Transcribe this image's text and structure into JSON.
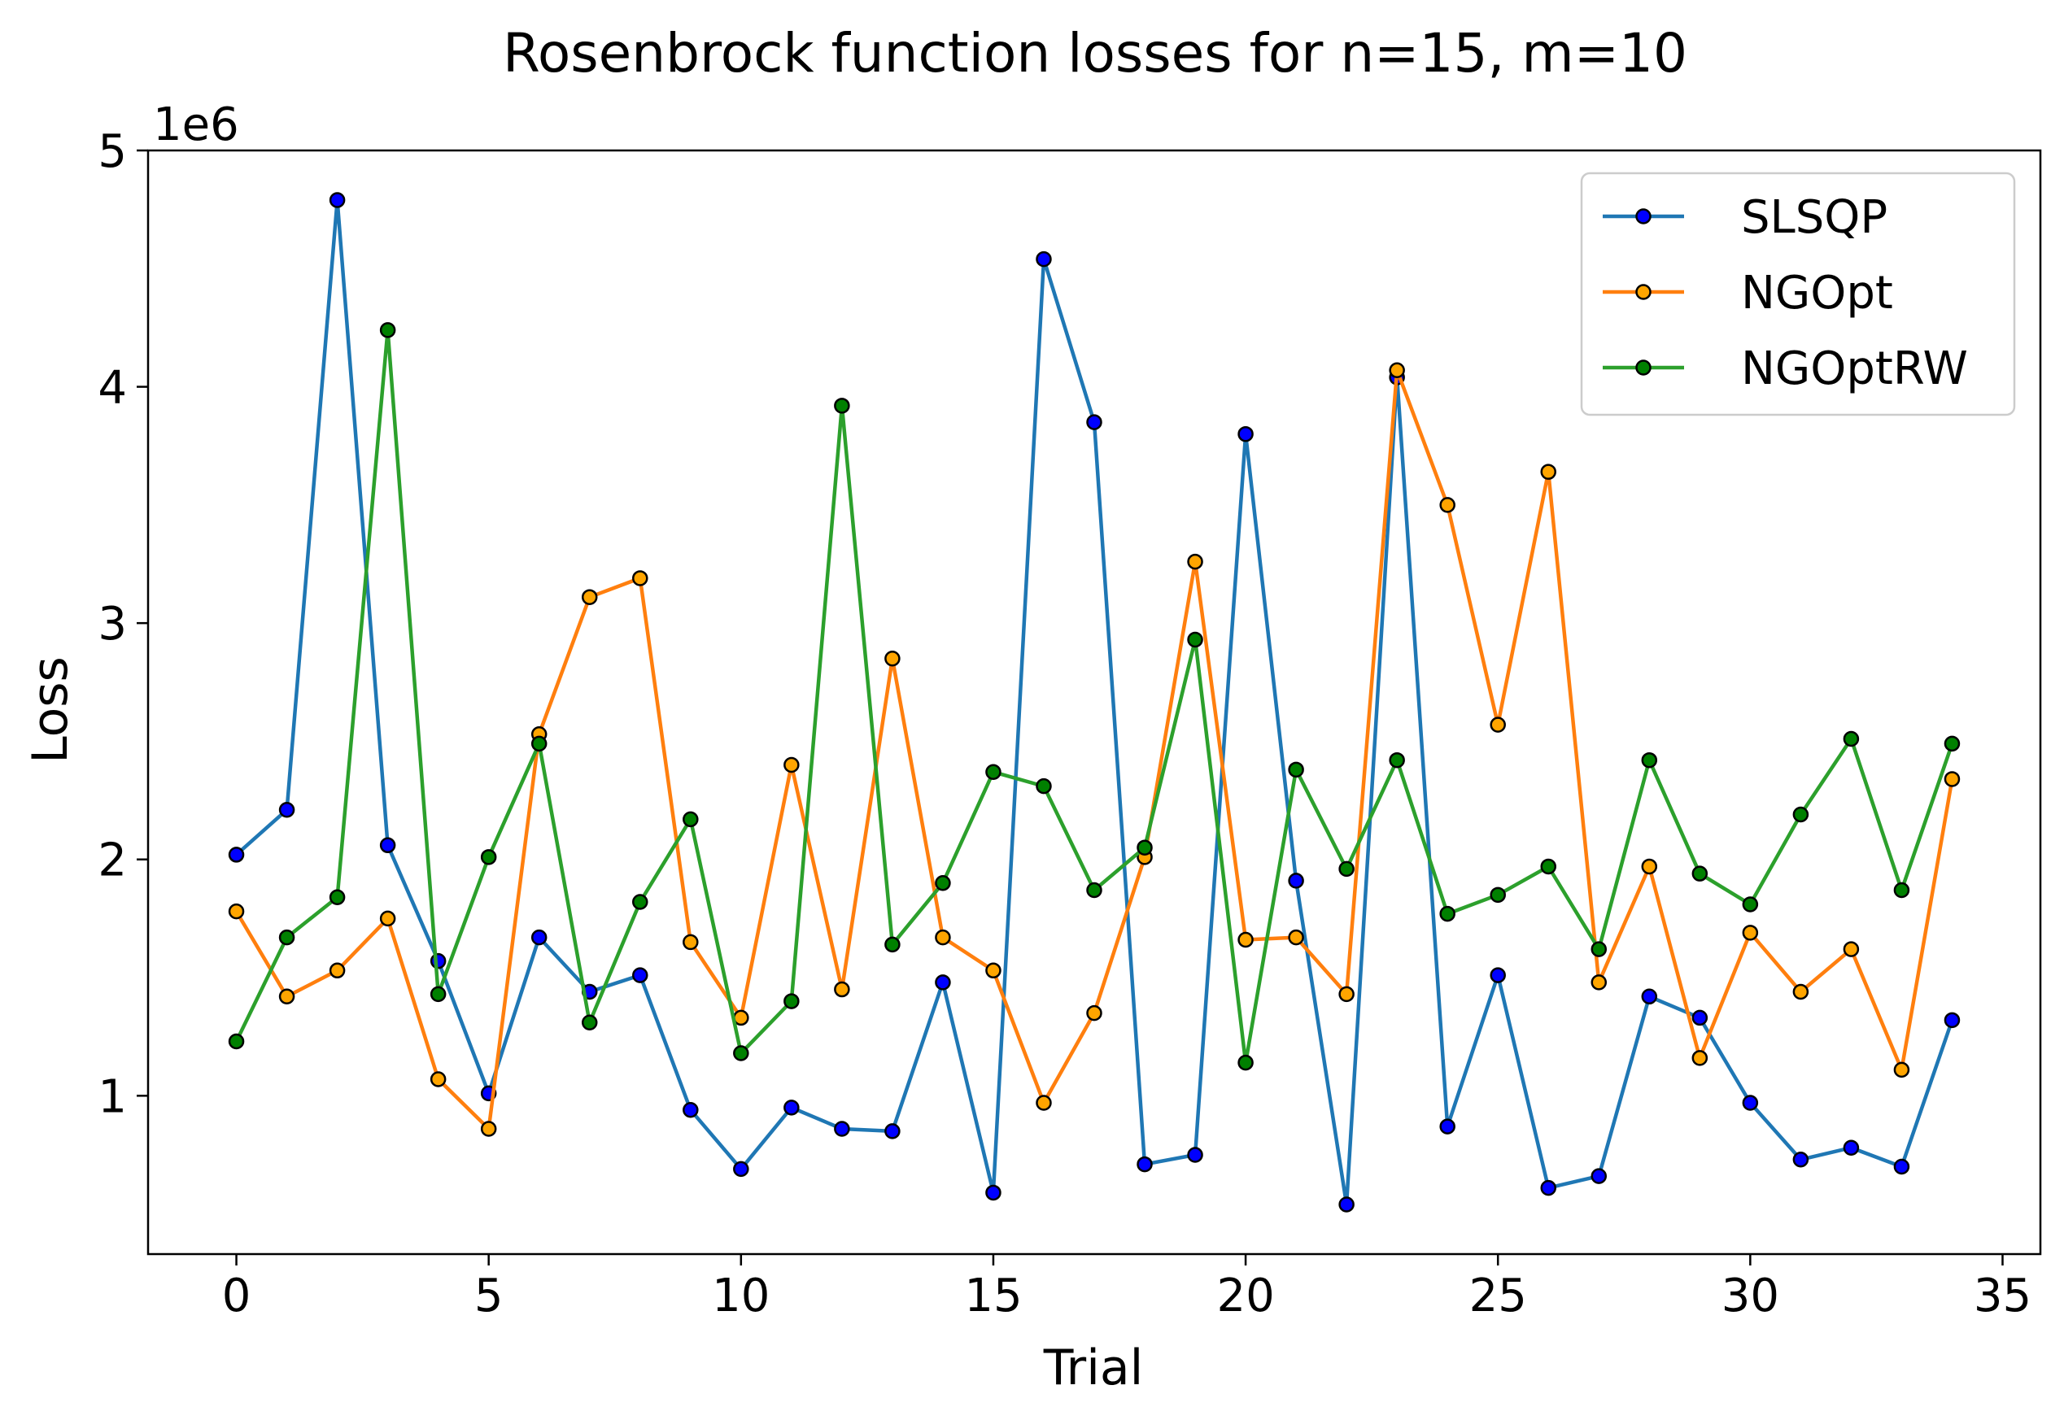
{
  "chart_data": {
    "type": "line",
    "title": "Rosenbrock function losses for n=15, m=10",
    "xlabel": "Trial",
    "ylabel": "Loss",
    "y_scale_label": "1e6",
    "y_multiplier": 1000000,
    "xlim": [
      -1.75,
      35.75
    ],
    "ylim": [
      0.33,
      5.0
    ],
    "xticks": [
      0,
      5,
      10,
      15,
      20,
      25,
      30,
      35
    ],
    "yticks": [
      1,
      2,
      3,
      4,
      5
    ],
    "grid": false,
    "legend_position": "top-right",
    "x": [
      0,
      1,
      2,
      3,
      4,
      5,
      6,
      7,
      8,
      9,
      10,
      11,
      12,
      13,
      14,
      15,
      16,
      17,
      18,
      19,
      20,
      21,
      22,
      23,
      24,
      25,
      26,
      27,
      28,
      29,
      30,
      31,
      32,
      33,
      34
    ],
    "series": [
      {
        "name": "SLSQP",
        "color": "#1f77b4",
        "marker_color": "#0000ff",
        "values": [
          2.02,
          2.21,
          4.79,
          2.06,
          1.57,
          1.01,
          1.67,
          1.44,
          1.51,
          0.94,
          0.69,
          0.95,
          0.86,
          0.85,
          1.48,
          0.59,
          4.54,
          3.85,
          0.71,
          0.75,
          3.8,
          1.91,
          0.54,
          4.04,
          0.87,
          1.51,
          0.61,
          0.66,
          1.42,
          1.33,
          0.97,
          0.73,
          0.78,
          0.7,
          1.32
        ]
      },
      {
        "name": "NGOpt",
        "color": "#ff7f0e",
        "marker_color": "#ffa500",
        "values": [
          1.78,
          1.42,
          1.53,
          1.75,
          1.07,
          0.86,
          2.53,
          3.11,
          3.19,
          1.65,
          1.33,
          2.4,
          1.45,
          2.85,
          1.67,
          1.53,
          0.97,
          1.35,
          2.01,
          3.26,
          1.66,
          1.67,
          1.43,
          4.07,
          3.5,
          2.57,
          3.64,
          1.48,
          1.97,
          1.16,
          1.69,
          1.44,
          1.62,
          1.11,
          2.34
        ]
      },
      {
        "name": "NGOptRW",
        "color": "#2ca02c",
        "marker_color": "#008000",
        "values": [
          1.23,
          1.67,
          1.84,
          4.24,
          1.43,
          2.01,
          2.49,
          1.31,
          1.82,
          2.17,
          1.18,
          1.4,
          3.92,
          1.64,
          1.9,
          2.37,
          2.31,
          1.87,
          2.05,
          2.93,
          1.14,
          2.38,
          1.96,
          2.42,
          1.77,
          1.85,
          1.97,
          1.62,
          2.42,
          1.94,
          1.81,
          2.19,
          2.51,
          1.87,
          2.49
        ]
      }
    ]
  }
}
